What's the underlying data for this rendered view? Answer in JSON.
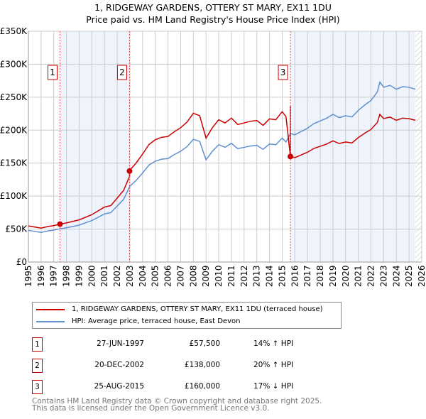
{
  "title": "1, RIDGEWAY GARDENS, OTTERY ST MARY, EX11 1DU",
  "subtitle": "Price paid vs. HM Land Registry's House Price Index (HPI)",
  "colors": {
    "property": "#cc0000",
    "hpi": "#6090d0",
    "shade": "#eef3fc"
  },
  "chart_data": {
    "type": "line",
    "xlim": [
      1995,
      2026
    ],
    "ylim": [
      0,
      350000
    ],
    "yticks": [
      {
        "v": 0,
        "label": "£0"
      },
      {
        "v": 50000,
        "label": "£50K"
      },
      {
        "v": 100000,
        "label": "£100K"
      },
      {
        "v": 150000,
        "label": "£150K"
      },
      {
        "v": 200000,
        "label": "£200K"
      },
      {
        "v": 250000,
        "label": "£250K"
      },
      {
        "v": 300000,
        "label": "£300K"
      },
      {
        "v": 350000,
        "label": "£350K"
      }
    ],
    "xticks": [
      "1995",
      "1996",
      "1997",
      "1998",
      "1999",
      "2000",
      "2001",
      "2002",
      "2003",
      "2004",
      "2005",
      "2006",
      "2007",
      "2008",
      "2009",
      "2010",
      "2011",
      "2012",
      "2013",
      "2014",
      "2015",
      "2016",
      "2017",
      "2018",
      "2019",
      "2020",
      "2021",
      "2022",
      "2023",
      "2024",
      "2025",
      "2026"
    ],
    "hpi": {
      "name": "HPI: Average price, terraced house, East Devon",
      "x": [
        1995,
        1996,
        1996.5,
        1997,
        1997.5,
        1998,
        1999,
        2000,
        2001,
        2001.5,
        2002,
        2002.5,
        2003,
        2003.5,
        2004,
        2004.5,
        2005,
        2005.5,
        2006,
        2006.5,
        2007,
        2007.5,
        2008,
        2008.5,
        2009,
        2009.5,
        2010,
        2010.5,
        2011,
        2011.5,
        2012,
        2012.5,
        2013,
        2013.5,
        2014,
        2014.5,
        2015,
        2015.3,
        2015.65,
        2016,
        2016.5,
        2017,
        2017.5,
        2018,
        2018.5,
        2019,
        2019.5,
        2020,
        2020.5,
        2021,
        2021.5,
        2022,
        2022.5,
        2022.7,
        2023,
        2023.5,
        2024,
        2024.5,
        2025,
        2025.5
      ],
      "y": [
        48000,
        45000,
        47000,
        48500,
        50400,
        52000,
        56000,
        63000,
        73000,
        75000,
        85000,
        95000,
        115000,
        124000,
        135000,
        147000,
        153000,
        156000,
        157000,
        163000,
        168000,
        175000,
        186000,
        183000,
        155000,
        168000,
        178000,
        174000,
        180000,
        172000,
        174000,
        176000,
        177000,
        171000,
        179000,
        178000,
        188000,
        182000,
        195000,
        193000,
        198000,
        203000,
        210000,
        214000,
        218000,
        224000,
        219000,
        222000,
        220000,
        230000,
        238000,
        245000,
        258000,
        273000,
        265000,
        268000,
        262000,
        266000,
        265000,
        262000
      ]
    },
    "property": {
      "name": "1, RIDGEWAY GARDENS, OTTERY ST MARY, EX11 1DU (terraced house)"
    },
    "sales": [
      {
        "x": 1997.49,
        "y": 57500,
        "label": "1"
      },
      {
        "x": 2002.97,
        "y": 138000,
        "label": "2"
      },
      {
        "x": 2015.65,
        "y": 160000,
        "label": "3"
      }
    ]
  },
  "legend": {
    "property": "1, RIDGEWAY GARDENS, OTTERY ST MARY, EX11 1DU (terraced house)",
    "hpi": "HPI: Average price, terraced house, East Devon"
  },
  "transactions": [
    {
      "num": "1",
      "date": "27-JUN-1997",
      "price": "£57,500",
      "hpi": "14% ↑ HPI"
    },
    {
      "num": "2",
      "date": "20-DEC-2002",
      "price": "£138,000",
      "hpi": "20% ↑ HPI"
    },
    {
      "num": "3",
      "date": "25-AUG-2015",
      "price": "£160,000",
      "hpi": "17% ↓ HPI"
    }
  ],
  "footer": {
    "line1": "Contains HM Land Registry data © Crown copyright and database right 2025.",
    "line2": "This data is licensed under the Open Government Licence v3.0."
  }
}
